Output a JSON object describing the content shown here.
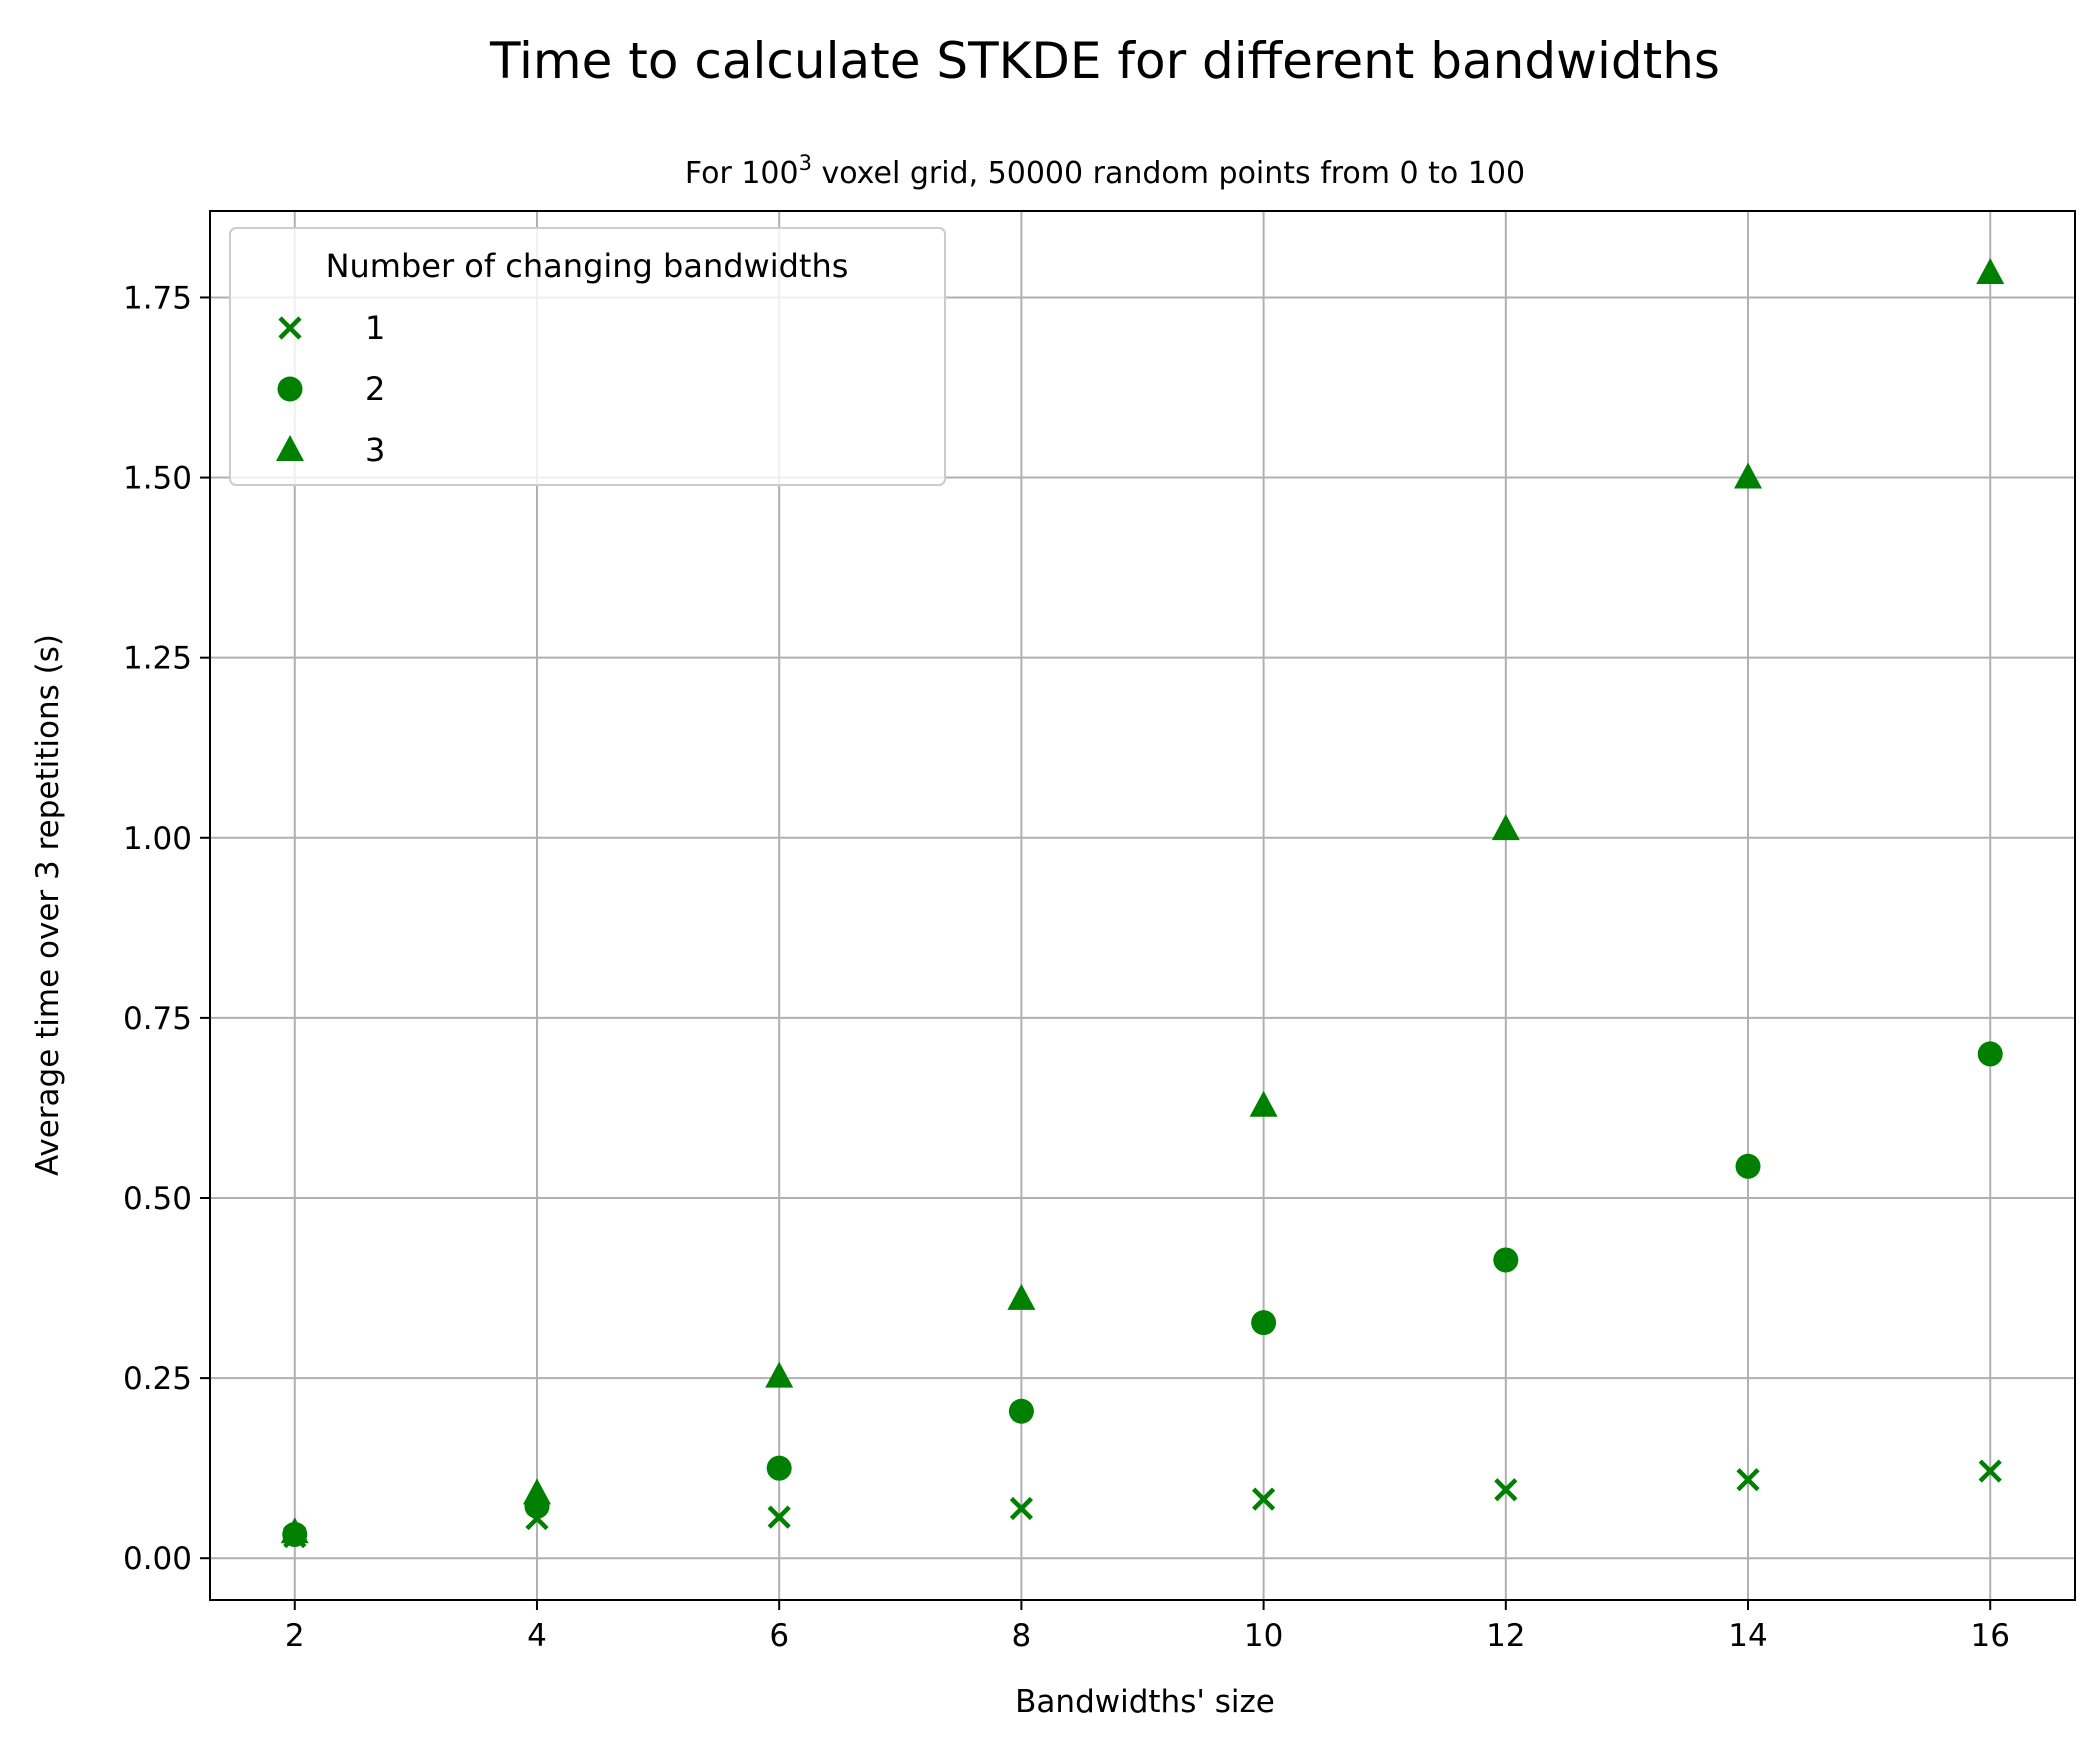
{
  "chart_data": {
    "type": "scatter",
    "title": "Time to calculate STKDE for different bandwidths",
    "subtitle_prefix": "For 100",
    "subtitle_superscript": "3",
    "subtitle_suffix": " voxel grid, 50000 random points from 0 to 100",
    "xlabel": "Bandwidths' size",
    "ylabel": "Average time over 3 repetitions (s)",
    "xlim": [
      1.3,
      16.7
    ],
    "ylim": [
      -0.058,
      1.87
    ],
    "xticks": [
      2,
      4,
      6,
      8,
      10,
      12,
      14,
      16
    ],
    "yticks": [
      0.0,
      0.25,
      0.5,
      0.75,
      1.0,
      1.25,
      1.5,
      1.75
    ],
    "xtick_labels": [
      "2",
      "4",
      "6",
      "8",
      "10",
      "12",
      "14",
      "16"
    ],
    "ytick_labels": [
      "0.00",
      "0.25",
      "0.50",
      "0.75",
      "1.00",
      "1.25",
      "1.50",
      "1.75"
    ],
    "grid": true,
    "legend_title": "Number of changing bandwidths",
    "legend_position": "top-left",
    "color": "#008000",
    "x": [
      2,
      4,
      6,
      8,
      10,
      12,
      14,
      16
    ],
    "series": [
      {
        "name": "1",
        "marker": "x",
        "values": [
          0.03,
          0.055,
          0.057,
          0.069,
          0.082,
          0.095,
          0.109,
          0.121
        ]
      },
      {
        "name": "2",
        "marker": "circle",
        "values": [
          0.033,
          0.072,
          0.125,
          0.204,
          0.327,
          0.414,
          0.544,
          0.7
        ]
      },
      {
        "name": "3",
        "marker": "triangle",
        "values": [
          0.036,
          0.09,
          0.252,
          0.36,
          0.628,
          1.012,
          1.5,
          1.784
        ]
      }
    ]
  }
}
